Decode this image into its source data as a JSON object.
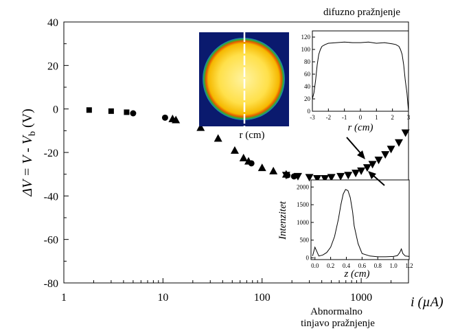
{
  "chart_data": [
    {
      "type": "scatter",
      "title": "",
      "xlabel": "i  (µA)",
      "ylabel": "ΔV = V - V_b  (V)",
      "ylabel_parts": {
        "main": "ΔV = V - V",
        "sub": "b",
        "unit": "  (V)"
      },
      "xscale": "log",
      "xlim": [
        1,
        3000
      ],
      "ylim": [
        -80,
        40
      ],
      "xticks": [
        1,
        10,
        100,
        1000
      ],
      "xtick_labels": [
        "1",
        "10",
        "100",
        "1000"
      ],
      "yticks": [
        -80,
        -60,
        -40,
        -20,
        0,
        20,
        40
      ],
      "ytick_labels": [
        "-80",
        "-60",
        "-40",
        "-20",
        "0",
        "20",
        "40"
      ],
      "grid": false,
      "annotations": {
        "diffuse": "difuzno pražnjenje",
        "abnormal_line1": "Abnormalno",
        "abnormal_line2": "tinjavo pražnjenje"
      },
      "series": [
        {
          "marker": "square",
          "x": [
            1.8,
            3.0,
            4.3
          ],
          "y": [
            -0.5,
            -1.0,
            -1.5
          ]
        },
        {
          "marker": "circle",
          "x": [
            5.0,
            10.5,
            78,
            180,
            210
          ],
          "y": [
            -2.0,
            -4.0,
            -25.0,
            -30.5,
            -31.0
          ]
        },
        {
          "marker": "triangle-up",
          "x": [
            12.5,
            13.5,
            24,
            36,
            53,
            65,
            73,
            100,
            130,
            175
          ],
          "y": [
            -4.5,
            -5.0,
            -8.5,
            -13.5,
            -19.0,
            -22.5,
            -24.0,
            -27.0,
            -28.5,
            -30.0
          ]
        },
        {
          "marker": "triangle-down",
          "x": [
            175,
            230,
            300,
            360,
            430,
            500,
            620,
            740,
            880,
            1000,
            1150,
            1300,
            1500,
            1750,
            2000,
            2400,
            2800
          ],
          "y": [
            -30.5,
            -31.0,
            -31.5,
            -32.0,
            -32.0,
            -31.5,
            -31.0,
            -30.5,
            -29.5,
            -28.5,
            -27.0,
            -25.5,
            -23.5,
            -21.0,
            -18.5,
            -15.5,
            -11.0
          ]
        }
      ]
    },
    {
      "type": "line",
      "title": "",
      "xlabel": "r  (cm)",
      "ylabel": "",
      "xlim": [
        -3,
        3
      ],
      "ylim": [
        0,
        130
      ],
      "xticks": [
        -3,
        -2,
        -1,
        0,
        1,
        2,
        3
      ],
      "xtick_labels": [
        "-3",
        "-2",
        "-1",
        "0",
        "1",
        "2",
        "3"
      ],
      "yticks": [
        0,
        20,
        40,
        60,
        80,
        100,
        120
      ],
      "ytick_labels": [
        "0",
        "20",
        "40",
        "60",
        "80",
        "100",
        "120"
      ],
      "x": [
        -3.0,
        -2.9,
        -2.8,
        -2.7,
        -2.6,
        -2.5,
        -2.4,
        -2.2,
        -2.0,
        -1.5,
        -1.0,
        -0.5,
        0.0,
        0.5,
        1.0,
        1.5,
        2.0,
        2.2,
        2.4,
        2.5,
        2.6,
        2.7,
        2.8,
        2.9,
        3.0
      ],
      "y": [
        20,
        30,
        50,
        75,
        92,
        100,
        105,
        108,
        110,
        111,
        112,
        111,
        111,
        112,
        110,
        111,
        109,
        108,
        105,
        100,
        92,
        75,
        50,
        30,
        0
      ]
    },
    {
      "type": "line",
      "title": "",
      "xlabel": "z  (cm)",
      "ylabel": "Intenzitet",
      "xlim": [
        -0.05,
        1.2
      ],
      "ylim": [
        -50,
        2200
      ],
      "xticks": [
        0.0,
        0.2,
        0.4,
        0.6,
        0.8,
        1.0,
        1.2
      ],
      "xtick_labels": [
        "0.0",
        "0.2",
        "0.4",
        "0.6",
        "0.8",
        "1.0",
        "1.2"
      ],
      "yticks": [
        0,
        500,
        1000,
        1500,
        2000
      ],
      "ytick_labels": [
        "0",
        "500",
        "1000",
        "1500",
        "2000"
      ],
      "x": [
        -0.03,
        0.0,
        0.02,
        0.05,
        0.1,
        0.15,
        0.2,
        0.25,
        0.3,
        0.33,
        0.36,
        0.39,
        0.42,
        0.45,
        0.48,
        0.5,
        0.55,
        0.6,
        0.7,
        0.8,
        0.9,
        1.0,
        1.05,
        1.08,
        1.1,
        1.12,
        1.15,
        1.2
      ],
      "y": [
        50,
        300,
        200,
        50,
        80,
        150,
        300,
        600,
        1100,
        1500,
        1800,
        1930,
        1900,
        1700,
        1300,
        900,
        400,
        120,
        50,
        30,
        30,
        40,
        60,
        150,
        250,
        120,
        50,
        40
      ]
    },
    {
      "type": "image",
      "xlabel": "r (cm)"
    }
  ]
}
